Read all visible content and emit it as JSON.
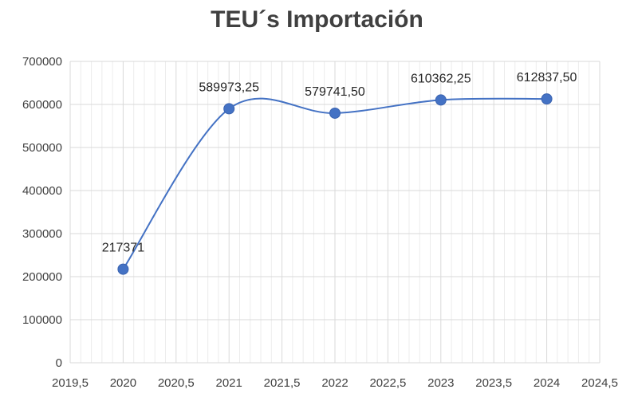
{
  "chart_data": {
    "type": "scatter",
    "title": "TEU´s Importación",
    "xlabel": "",
    "ylabel": "",
    "x": [
      2020,
      2021,
      2022,
      2023,
      2024
    ],
    "y": [
      217371,
      589973.25,
      579741.5,
      610362.25,
      612837.5
    ],
    "data_labels": [
      "217371",
      "589973,25",
      "579741,50",
      "610362,25",
      "612837,50"
    ],
    "xlim": [
      2019.5,
      2024.5
    ],
    "ylim": [
      0,
      700000
    ],
    "x_ticks": [
      "2019,5",
      "2020",
      "2020,5",
      "2021",
      "2021,5",
      "2022",
      "2022,5",
      "2023",
      "2023,5",
      "2024",
      "2024,5"
    ],
    "y_ticks": [
      "0",
      "100000",
      "200000",
      "300000",
      "400000",
      "500000",
      "600000",
      "700000"
    ],
    "smooth_line": true,
    "grid": true,
    "legend": "none",
    "colors": {
      "series": "#4472C4",
      "grid": "#d9d9d9",
      "text": "#404040"
    }
  }
}
